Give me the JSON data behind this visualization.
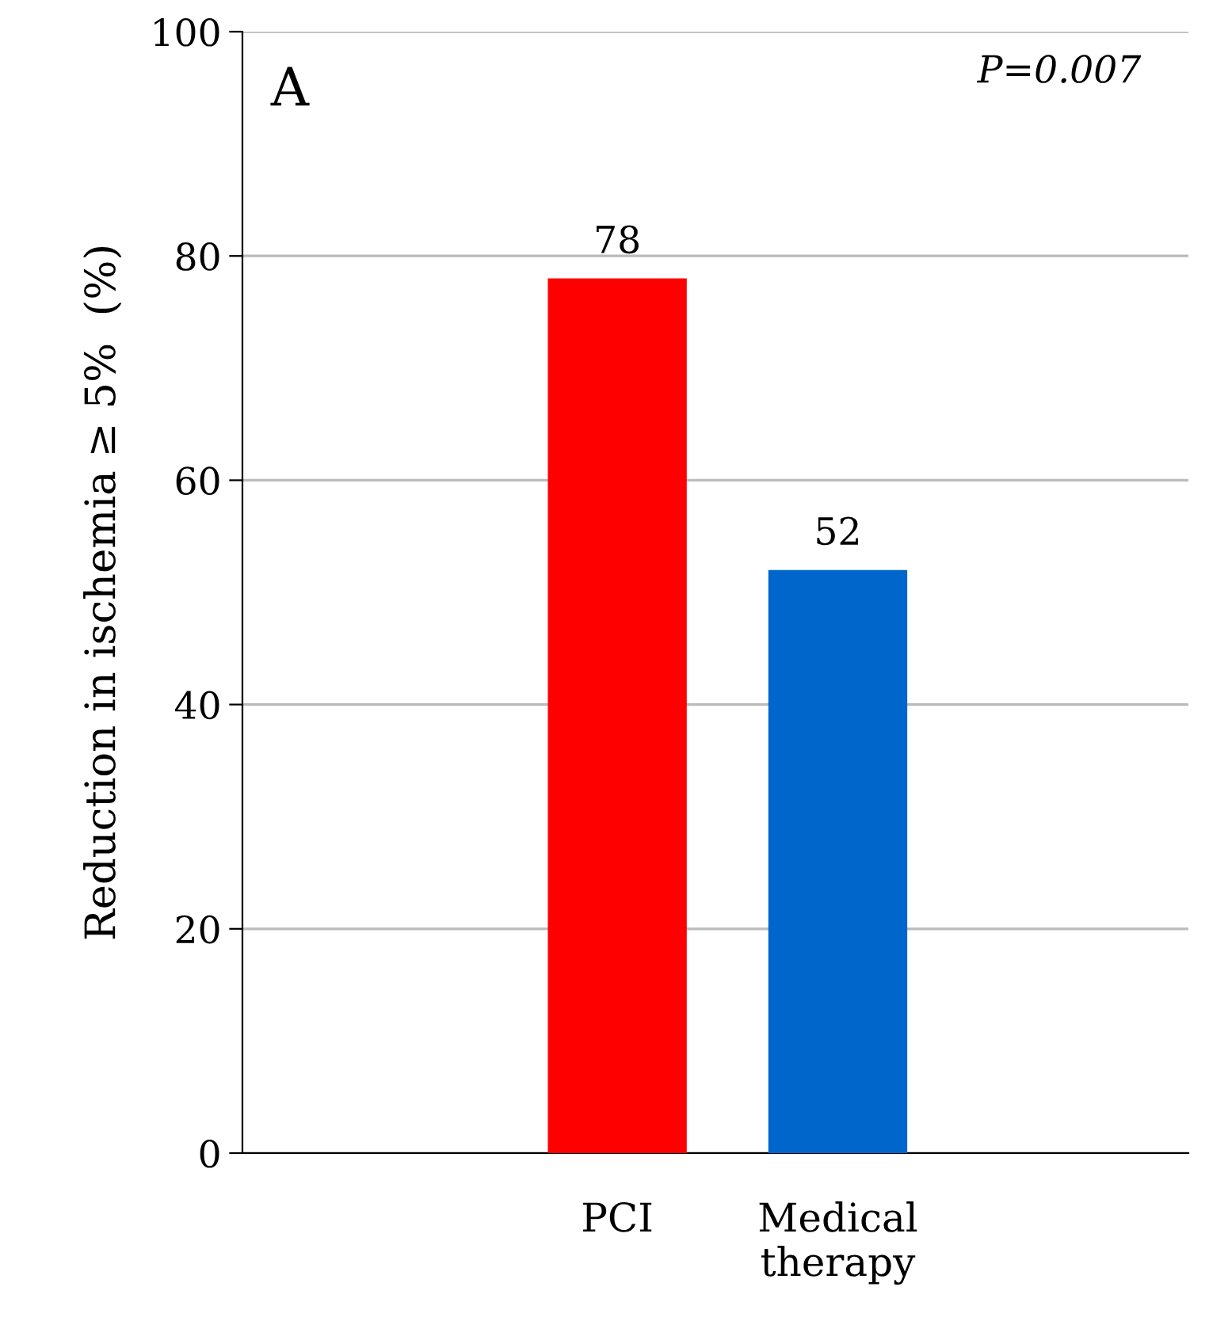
{
  "chart_data": {
    "type": "bar",
    "ylabel": "Reduction in ischemia ≥ 5%  (%)",
    "categories": [
      "PCI",
      "Medical\ntherapy"
    ],
    "values": [
      78,
      52
    ],
    "colors": [
      "#ff0000",
      "#0066cc"
    ],
    "ylim": [
      0,
      100
    ],
    "yticks": [
      0,
      20,
      40,
      60,
      80,
      100
    ],
    "grid": "y",
    "data_labels": true,
    "annotations": [
      "A",
      "P=0.007"
    ]
  }
}
